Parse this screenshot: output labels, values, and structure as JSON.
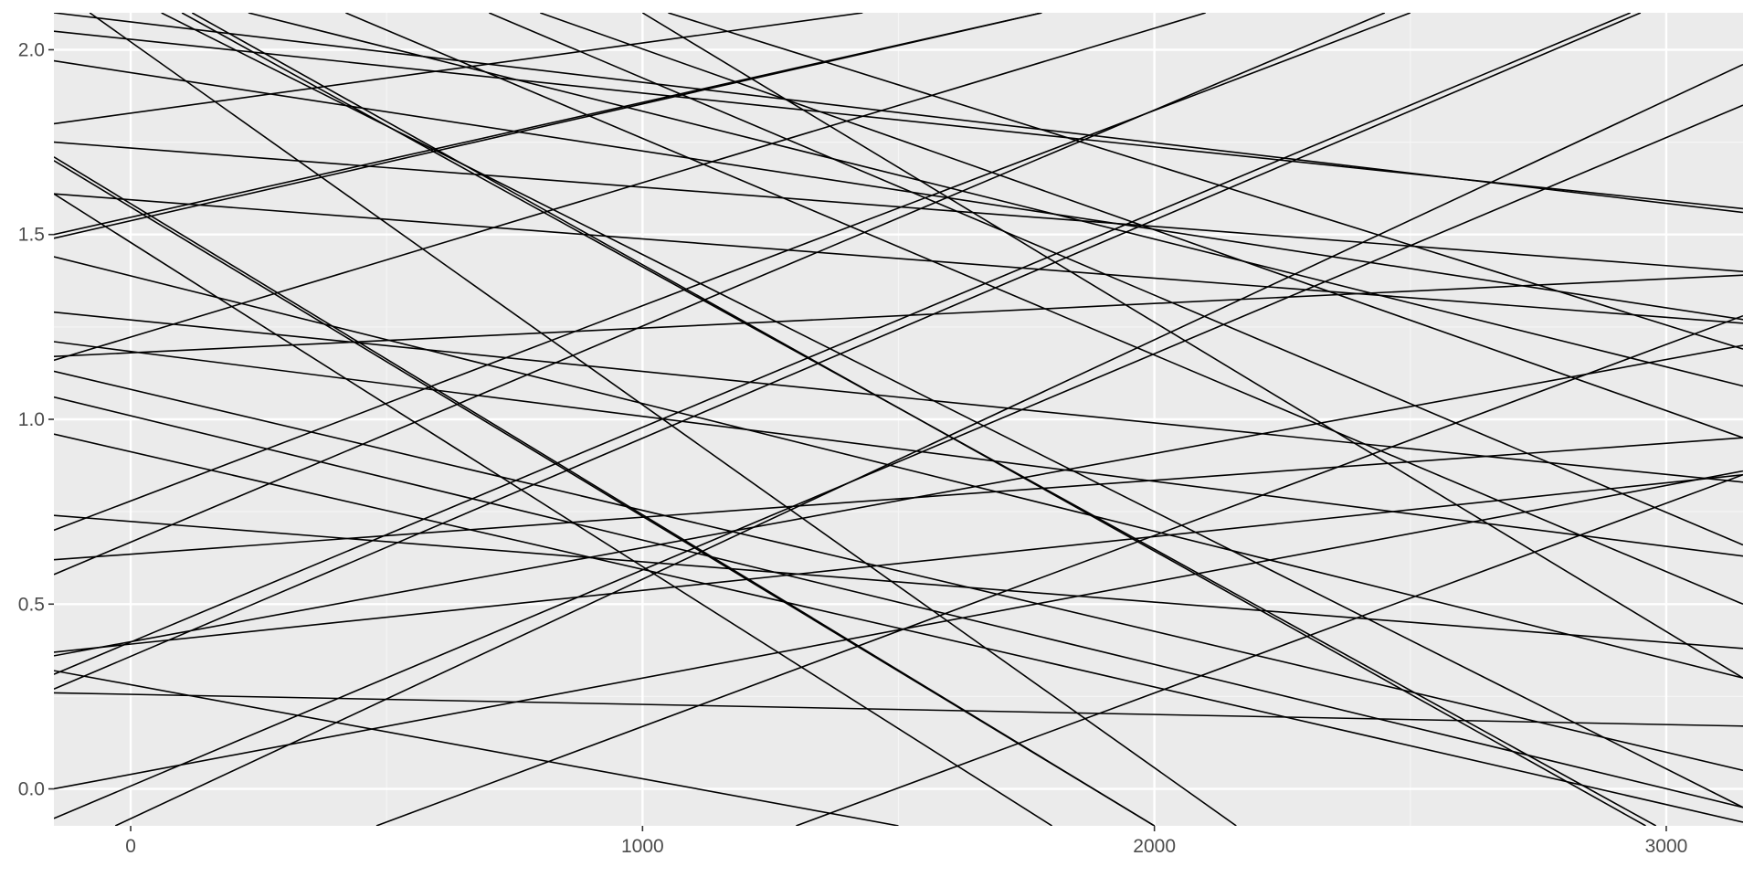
{
  "chart_data": {
    "type": "line",
    "title": "",
    "xlabel": "",
    "ylabel": "",
    "xlim": [
      -150,
      3150
    ],
    "ylim": [
      -0.1,
      2.1
    ],
    "x_ticks": [
      0,
      1000,
      2000,
      3000
    ],
    "x_tick_labels": [
      "0",
      "1000",
      "2000",
      "3000"
    ],
    "y_ticks": [
      0.0,
      0.5,
      1.0,
      1.5,
      2.0
    ],
    "y_tick_labels": [
      "0.0",
      "0.5",
      "1.0",
      "1.5",
      "2.0"
    ],
    "grid": true,
    "legend": "none",
    "colors": {
      "panel": "#ebebeb",
      "grid_major": "#ffffff",
      "grid_minor": "#f5f5f5",
      "line": "#000000",
      "tick": "#333333",
      "tick_label": "#4d4d4d"
    },
    "series": [
      {
        "x": [
          -150,
          3150
        ],
        "y": [
          0.26,
          0.17
        ]
      },
      {
        "x": [
          -150,
          1430
        ],
        "y": [
          1.8,
          2.1
        ]
      },
      {
        "x": [
          -150,
          3150
        ],
        "y": [
          2.1,
          1.56
        ]
      },
      {
        "x": [
          -150,
          3150
        ],
        "y": [
          2.05,
          1.57
        ]
      },
      {
        "x": [
          -150,
          3150
        ],
        "y": [
          1.97,
          1.27
        ]
      },
      {
        "x": [
          -150,
          3150
        ],
        "y": [
          1.75,
          1.4
        ]
      },
      {
        "x": [
          -150,
          3150
        ],
        "y": [
          1.61,
          1.26
        ]
      },
      {
        "x": [
          -150,
          1780
        ],
        "y": [
          1.5,
          2.1
        ]
      },
      {
        "x": [
          -150,
          3150
        ],
        "y": [
          1.29,
          0.83
        ]
      },
      {
        "x": [
          -150,
          3150
        ],
        "y": [
          1.21,
          0.63
        ]
      },
      {
        "x": [
          -150,
          3150
        ],
        "y": [
          1.17,
          1.39
        ]
      },
      {
        "x": [
          -150,
          2100
        ],
        "y": [
          1.16,
          2.1
        ]
      },
      {
        "x": [
          -150,
          3150
        ],
        "y": [
          1.13,
          0.05
        ]
      },
      {
        "x": [
          -150,
          3150
        ],
        "y": [
          1.06,
          -0.05
        ]
      },
      {
        "x": [
          -150,
          3150
        ],
        "y": [
          0.96,
          -0.09
        ]
      },
      {
        "x": [
          -150,
          3150
        ],
        "y": [
          0.74,
          0.38
        ]
      },
      {
        "x": [
          -150,
          3150
        ],
        "y": [
          0.62,
          0.95
        ]
      },
      {
        "x": [
          -150,
          3150
        ],
        "y": [
          0.37,
          0.85
        ]
      },
      {
        "x": [
          -150,
          3150
        ],
        "y": [
          0.36,
          1.2
        ]
      },
      {
        "x": [
          -150,
          1500
        ],
        "y": [
          0.32,
          -0.1
        ]
      },
      {
        "x": [
          -150,
          3150
        ],
        "y": [
          0.0,
          0.86
        ]
      },
      {
        "x": [
          -150,
          2500
        ],
        "y": [
          0.7,
          2.1
        ]
      },
      {
        "x": [
          -150,
          2450
        ],
        "y": [
          0.58,
          2.1
        ]
      },
      {
        "x": [
          -150,
          2930
        ],
        "y": [
          0.31,
          2.1
        ]
      },
      {
        "x": [
          -150,
          2950
        ],
        "y": [
          0.27,
          2.1
        ]
      },
      {
        "x": [
          -150,
          3150
        ],
        "y": [
          -0.08,
          1.85
        ]
      },
      {
        "x": [
          -30,
          3150
        ],
        "y": [
          -0.1,
          1.96
        ]
      },
      {
        "x": [
          480,
          3150
        ],
        "y": [
          -0.1,
          1.28
        ]
      },
      {
        "x": [
          1300,
          3150
        ],
        "y": [
          -0.1,
          0.85
        ]
      },
      {
        "x": [
          -150,
          2000
        ],
        "y": [
          1.71,
          -0.1
        ]
      },
      {
        "x": [
          -150,
          2000
        ],
        "y": [
          1.7,
          -0.1
        ]
      },
      {
        "x": [
          -150,
          3150
        ],
        "y": [
          1.44,
          0.3
        ]
      },
      {
        "x": [
          -80,
          2160
        ],
        "y": [
          2.1,
          -0.1
        ]
      },
      {
        "x": [
          60,
          3150
        ],
        "y": [
          2.1,
          -0.05
        ]
      },
      {
        "x": [
          100,
          2980
        ],
        "y": [
          2.1,
          -0.1
        ]
      },
      {
        "x": [
          120,
          2960
        ],
        "y": [
          2.1,
          -0.1
        ]
      },
      {
        "x": [
          230,
          3150
        ],
        "y": [
          2.1,
          1.09
        ]
      },
      {
        "x": [
          420,
          3150
        ],
        "y": [
          2.1,
          0.5
        ]
      },
      {
        "x": [
          700,
          3150
        ],
        "y": [
          2.1,
          0.66
        ]
      },
      {
        "x": [
          800,
          3150
        ],
        "y": [
          2.1,
          0.95
        ]
      },
      {
        "x": [
          1050,
          3150
        ],
        "y": [
          2.1,
          1.19
        ]
      },
      {
        "x": [
          1000,
          3150
        ],
        "y": [
          2.1,
          0.3
        ]
      },
      {
        "x": [
          -150,
          1780
        ],
        "y": [
          1.49,
          2.1
        ]
      },
      {
        "x": [
          -150,
          1800
        ],
        "y": [
          1.61,
          -0.1
        ]
      }
    ]
  }
}
